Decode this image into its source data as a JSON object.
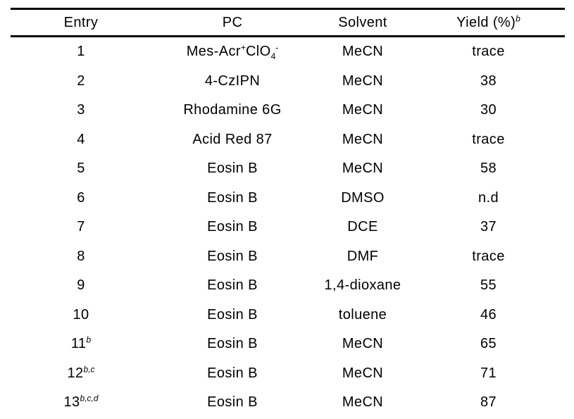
{
  "table": {
    "columns": [
      {
        "key": "entry",
        "label": "Entry"
      },
      {
        "key": "pc",
        "label": "PC"
      },
      {
        "key": "solvent",
        "label": "Solvent"
      },
      {
        "key": "yield",
        "label": [
          {
            "t": "Yield (%)"
          },
          {
            "t": "b",
            "s": "supi"
          }
        ]
      }
    ],
    "rows": [
      {
        "cells": [
          "1",
          [
            {
              "t": "Mes-Acr"
            },
            {
              "t": "+",
              "s": "sup"
            },
            {
              "t": "ClO"
            },
            {
              "t": "4",
              "s": "sub"
            },
            {
              "t": "-",
              "s": "sup"
            }
          ],
          "MeCN",
          "trace"
        ]
      },
      {
        "cells": [
          "2",
          "4-CzIPN",
          "MeCN",
          "38"
        ]
      },
      {
        "cells": [
          "3",
          "Rhodamine 6G",
          "MeCN",
          "30"
        ]
      },
      {
        "cells": [
          "4",
          "Acid Red 87",
          "MeCN",
          "trace"
        ]
      },
      {
        "cells": [
          "5",
          "Eosin B",
          "MeCN",
          "58"
        ]
      },
      {
        "cells": [
          "6",
          "Eosin B",
          "DMSO",
          "n.d"
        ]
      },
      {
        "cells": [
          "7",
          "Eosin B",
          "DCE",
          "37"
        ]
      },
      {
        "cells": [
          "8",
          "Eosin B",
          "DMF",
          "trace"
        ]
      },
      {
        "cells": [
          "9",
          "Eosin B",
          "1,4-dioxane",
          "55"
        ]
      },
      {
        "cells": [
          "10",
          "Eosin B",
          "toluene",
          "46"
        ]
      },
      {
        "cells": [
          [
            {
              "t": "11"
            },
            {
              "t": "b",
              "s": "supi"
            }
          ],
          "Eosin B",
          "MeCN",
          "65"
        ]
      },
      {
        "cells": [
          [
            {
              "t": "12"
            },
            {
              "t": "b,c",
              "s": "supi"
            }
          ],
          "Eosin B",
          "MeCN",
          "71"
        ]
      },
      {
        "cells": [
          [
            {
              "t": "13"
            },
            {
              "t": "b,c,d",
              "s": "supi"
            }
          ],
          "Eosin B",
          "MeCN",
          "87"
        ]
      }
    ]
  }
}
